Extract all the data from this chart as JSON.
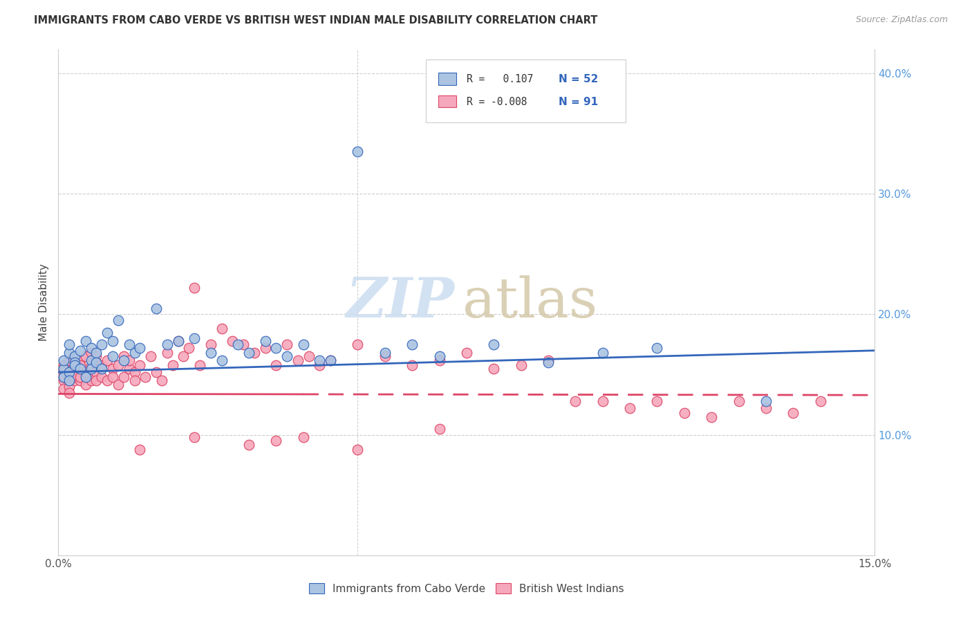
{
  "title": "IMMIGRANTS FROM CABO VERDE VS BRITISH WEST INDIAN MALE DISABILITY CORRELATION CHART",
  "source": "Source: ZipAtlas.com",
  "ylabel": "Male Disability",
  "xlim": [
    0.0,
    0.15
  ],
  "ylim": [
    0.0,
    0.42
  ],
  "yticks_right": [
    0.1,
    0.2,
    0.3,
    0.4
  ],
  "ytick_right_labels": [
    "10.0%",
    "20.0%",
    "30.0%",
    "40.0%"
  ],
  "legend_label1": "Immigrants from Cabo Verde",
  "legend_label2": "British West Indians",
  "R1": 0.107,
  "N1": 52,
  "R2": -0.008,
  "N2": 91,
  "color1": "#aac4e2",
  "color2": "#f5a8bb",
  "line_color1": "#3366bb",
  "line_color2": "#dd4466",
  "text_color_r": "#333333",
  "text_color_n": "#3366bb",
  "grid_color": "#cccccc",
  "watermark_zip_color": "#ccddf0",
  "watermark_atlas_color": "#d4c8a8",
  "cabo_verde_x": [
    0.001,
    0.001,
    0.001,
    0.002,
    0.002,
    0.002,
    0.002,
    0.003,
    0.003,
    0.003,
    0.004,
    0.004,
    0.005,
    0.005,
    0.006,
    0.006,
    0.006,
    0.007,
    0.007,
    0.008,
    0.008,
    0.009,
    0.01,
    0.01,
    0.011,
    0.012,
    0.013,
    0.014,
    0.015,
    0.018,
    0.02,
    0.022,
    0.025,
    0.028,
    0.03,
    0.033,
    0.035,
    0.038,
    0.04,
    0.042,
    0.045,
    0.048,
    0.05,
    0.055,
    0.06,
    0.065,
    0.07,
    0.08,
    0.09,
    0.1,
    0.11,
    0.13
  ],
  "cabo_verde_y": [
    0.155,
    0.162,
    0.148,
    0.168,
    0.175,
    0.152,
    0.145,
    0.165,
    0.16,
    0.158,
    0.17,
    0.155,
    0.178,
    0.148,
    0.162,
    0.172,
    0.155,
    0.168,
    0.16,
    0.175,
    0.155,
    0.185,
    0.165,
    0.178,
    0.195,
    0.162,
    0.175,
    0.168,
    0.172,
    0.205,
    0.175,
    0.178,
    0.18,
    0.168,
    0.162,
    0.175,
    0.168,
    0.178,
    0.172,
    0.165,
    0.175,
    0.162,
    0.162,
    0.335,
    0.168,
    0.175,
    0.165,
    0.175,
    0.16,
    0.168,
    0.172,
    0.128
  ],
  "bwi_x": [
    0.001,
    0.001,
    0.001,
    0.001,
    0.001,
    0.001,
    0.002,
    0.002,
    0.002,
    0.002,
    0.002,
    0.003,
    0.003,
    0.003,
    0.003,
    0.004,
    0.004,
    0.004,
    0.004,
    0.005,
    0.005,
    0.005,
    0.006,
    0.006,
    0.006,
    0.007,
    0.007,
    0.007,
    0.008,
    0.008,
    0.009,
    0.009,
    0.01,
    0.01,
    0.011,
    0.011,
    0.012,
    0.012,
    0.013,
    0.013,
    0.014,
    0.014,
    0.015,
    0.016,
    0.017,
    0.018,
    0.019,
    0.02,
    0.021,
    0.022,
    0.023,
    0.024,
    0.025,
    0.026,
    0.028,
    0.03,
    0.032,
    0.034,
    0.036,
    0.038,
    0.04,
    0.042,
    0.044,
    0.046,
    0.048,
    0.05,
    0.055,
    0.06,
    0.065,
    0.07,
    0.075,
    0.08,
    0.085,
    0.09,
    0.095,
    0.1,
    0.105,
    0.11,
    0.115,
    0.12,
    0.125,
    0.13,
    0.135,
    0.14,
    0.045,
    0.015,
    0.025,
    0.035,
    0.055,
    0.07,
    0.04
  ],
  "bwi_y": [
    0.152,
    0.145,
    0.158,
    0.148,
    0.138,
    0.155,
    0.148,
    0.162,
    0.14,
    0.152,
    0.135,
    0.158,
    0.145,
    0.155,
    0.148,
    0.162,
    0.145,
    0.158,
    0.148,
    0.165,
    0.142,
    0.152,
    0.158,
    0.145,
    0.168,
    0.152,
    0.165,
    0.145,
    0.158,
    0.148,
    0.162,
    0.145,
    0.155,
    0.148,
    0.158,
    0.142,
    0.165,
    0.148,
    0.155,
    0.162,
    0.152,
    0.145,
    0.158,
    0.148,
    0.165,
    0.152,
    0.145,
    0.168,
    0.158,
    0.178,
    0.165,
    0.172,
    0.222,
    0.158,
    0.175,
    0.188,
    0.178,
    0.175,
    0.168,
    0.172,
    0.158,
    0.175,
    0.162,
    0.165,
    0.158,
    0.162,
    0.175,
    0.165,
    0.158,
    0.162,
    0.168,
    0.155,
    0.158,
    0.162,
    0.128,
    0.128,
    0.122,
    0.128,
    0.118,
    0.115,
    0.128,
    0.122,
    0.118,
    0.128,
    0.098,
    0.088,
    0.098,
    0.092,
    0.088,
    0.105,
    0.095
  ],
  "cv_line_x0": 0.0,
  "cv_line_x1": 0.15,
  "cv_line_y0": 0.152,
  "cv_line_y1": 0.17,
  "bwi_line_x0": 0.0,
  "bwi_line_x1": 0.15,
  "bwi_line_y0": 0.134,
  "bwi_line_y1": 0.133
}
